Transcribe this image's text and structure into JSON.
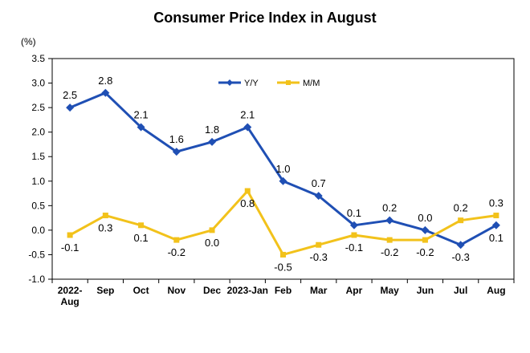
{
  "chart_data": {
    "type": "line",
    "title": "Consumer Price Index in August",
    "ylabel": "(%)",
    "xlabel": "",
    "ylim": [
      -1.0,
      3.5
    ],
    "yticks": [
      "3.5",
      "3.0",
      "2.5",
      "2.0",
      "1.5",
      "1.0",
      "0.5",
      "0.0",
      "-0.5",
      "-1.0"
    ],
    "ytick_values": [
      3.5,
      3.0,
      2.5,
      2.0,
      1.5,
      1.0,
      0.5,
      0.0,
      -0.5,
      -1.0
    ],
    "categories": [
      [
        "2022-",
        "Aug"
      ],
      [
        "Sep"
      ],
      [
        "Oct"
      ],
      [
        "Nov"
      ],
      [
        "Dec"
      ],
      [
        "2023-Jan"
      ],
      [
        "Feb"
      ],
      [
        "Mar"
      ],
      [
        "Apr"
      ],
      [
        "May"
      ],
      [
        "Jun"
      ],
      [
        "Jul"
      ],
      [
        "Aug"
      ]
    ],
    "grid": false,
    "legend_position": "top-right",
    "series": [
      {
        "name": "Y/Y",
        "color": "#1F4FB4",
        "marker": "diamond",
        "values": [
          2.5,
          2.8,
          2.1,
          1.6,
          1.8,
          2.1,
          1.0,
          0.7,
          0.1,
          0.2,
          0.0,
          -0.3,
          0.1
        ],
        "labels": [
          "2.5",
          "2.8",
          "2.1",
          "1.6",
          "1.8",
          "2.1",
          "1.0",
          "0.7",
          "0.1",
          "0.2",
          "0.0",
          "-0.3",
          "0.1"
        ],
        "label_pos": [
          "above",
          "above",
          "above",
          "above",
          "above",
          "above",
          "above",
          "above",
          "above",
          "above",
          "above",
          "below",
          "below"
        ]
      },
      {
        "name": "M/M",
        "color": "#F2C21B",
        "marker": "square",
        "values": [
          -0.1,
          0.3,
          0.1,
          -0.2,
          0.0,
          0.8,
          -0.5,
          -0.3,
          -0.1,
          -0.2,
          -0.2,
          0.2,
          0.3
        ],
        "labels": [
          "-0.1",
          "0.3",
          "0.1",
          "-0.2",
          "0.0",
          "0.8",
          "-0.5",
          "-0.3",
          "-0.1",
          "-0.2",
          "-0.2",
          "0.2",
          "0.3"
        ],
        "label_pos": [
          "below",
          "below",
          "below",
          "below",
          "below",
          "below",
          "below",
          "below",
          "below",
          "below",
          "below",
          "above",
          "above"
        ]
      }
    ]
  }
}
